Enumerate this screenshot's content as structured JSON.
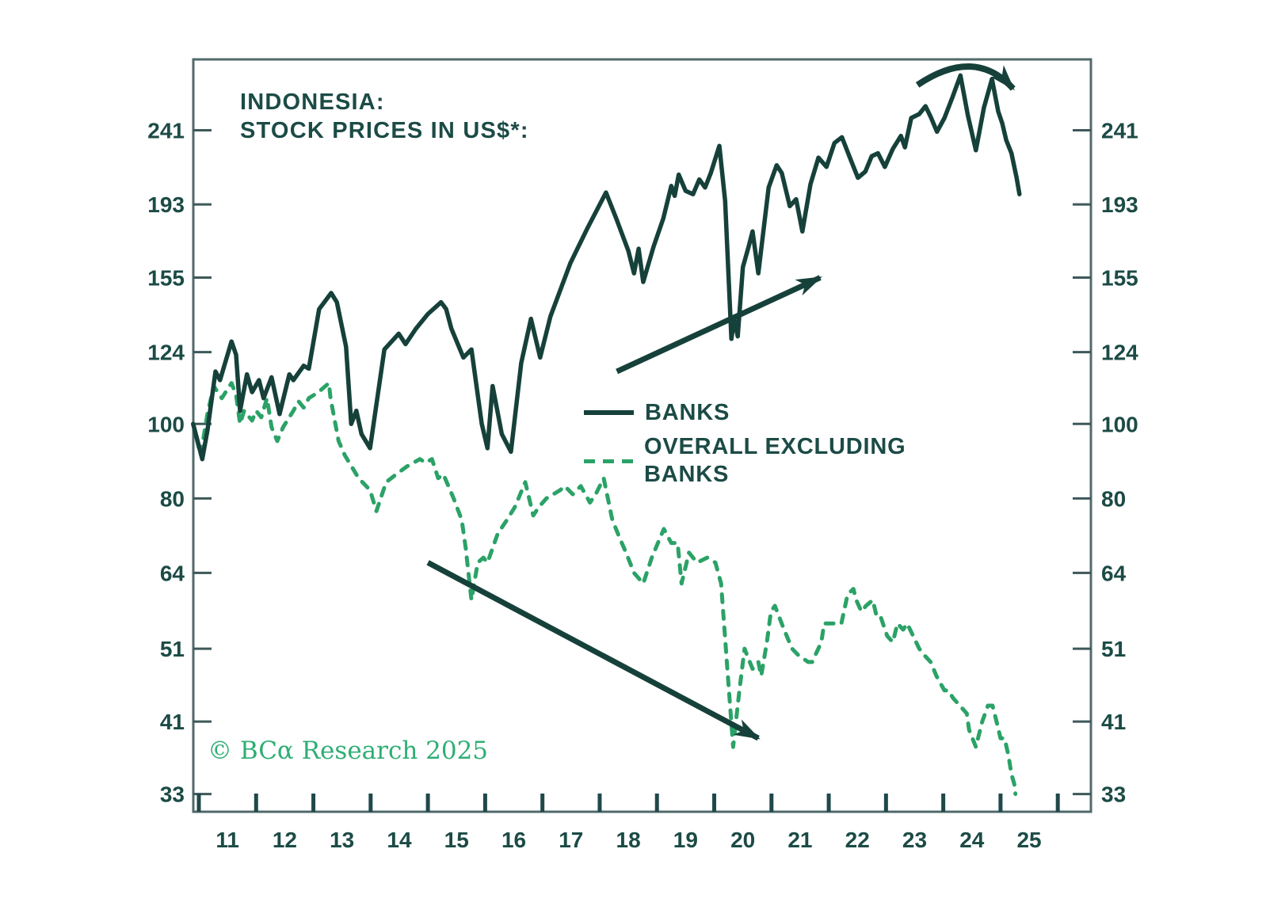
{
  "title": {
    "line1": "INDONESIA:",
    "line2": "STOCK PRICES IN US$*:"
  },
  "watermark": {
    "text": "© BCα Research 2025"
  },
  "legend": {
    "items": [
      {
        "label": "BANKS",
        "style": "solid"
      },
      {
        "label_line1": "OVERALL EXCLUDING",
        "label_line2": "BANKS",
        "style": "dashed"
      }
    ]
  },
  "colors": {
    "banks_line": "#16413a",
    "overall_line": "#2ba267",
    "text_dark": "#1c4b46",
    "frame": "#51696a",
    "y_tick": "#3d585a",
    "x_tick": "#20484a",
    "watermark_green": "#2fae74",
    "background": "#ffffff"
  },
  "chart_data": {
    "type": "line",
    "title": "INDONESIA: STOCK PRICES IN US$*:",
    "grid": false,
    "legend_position": "center-left-inside-plot",
    "y_axis": {
      "scale": "log",
      "ticks": [
        241,
        193,
        155,
        124,
        100,
        80,
        64,
        51,
        41,
        33
      ],
      "label_sides": "both",
      "range": [
        31,
        298
      ]
    },
    "x_axis": {
      "tick_years": [
        2011,
        2012,
        2013,
        2014,
        2015,
        2016,
        2017,
        2018,
        2019,
        2020,
        2021,
        2022,
        2023,
        2024,
        2025,
        2026
      ],
      "labels": [
        "11",
        "12",
        "13",
        "14",
        "15",
        "16",
        "17",
        "18",
        "19",
        "20",
        "21",
        "22",
        "23",
        "24",
        "25"
      ],
      "range": [
        2010.9,
        2026.6
      ]
    },
    "series": [
      {
        "name": "BANKS",
        "style": "solid",
        "points": [
          [
            2010.9,
            100
          ],
          [
            2011.06,
            90
          ],
          [
            2011.15,
            98
          ],
          [
            2011.29,
            117
          ],
          [
            2011.37,
            114
          ],
          [
            2011.57,
            128
          ],
          [
            2011.65,
            123
          ],
          [
            2011.72,
            104
          ],
          [
            2011.84,
            116
          ],
          [
            2011.93,
            110
          ],
          [
            2012.05,
            114
          ],
          [
            2012.13,
            108
          ],
          [
            2012.27,
            115
          ],
          [
            2012.41,
            103
          ],
          [
            2012.58,
            116
          ],
          [
            2012.65,
            114
          ],
          [
            2012.83,
            119
          ],
          [
            2012.92,
            118
          ],
          [
            2013.1,
            141
          ],
          [
            2013.31,
            148
          ],
          [
            2013.41,
            144
          ],
          [
            2013.57,
            126
          ],
          [
            2013.66,
            100
          ],
          [
            2013.75,
            104
          ],
          [
            2013.84,
            97
          ],
          [
            2013.99,
            93
          ],
          [
            2014.24,
            125
          ],
          [
            2014.49,
            131
          ],
          [
            2014.61,
            127
          ],
          [
            2014.79,
            133
          ],
          [
            2015.0,
            139
          ],
          [
            2015.23,
            144
          ],
          [
            2015.32,
            141
          ],
          [
            2015.41,
            133
          ],
          [
            2015.62,
            122
          ],
          [
            2015.76,
            125
          ],
          [
            2015.94,
            100
          ],
          [
            2016.04,
            93
          ],
          [
            2016.13,
            112
          ],
          [
            2016.29,
            97
          ],
          [
            2016.45,
            92
          ],
          [
            2016.63,
            120
          ],
          [
            2016.8,
            137
          ],
          [
            2016.96,
            122
          ],
          [
            2017.14,
            138
          ],
          [
            2017.49,
            162
          ],
          [
            2017.79,
            180
          ],
          [
            2018.11,
            200
          ],
          [
            2018.29,
            185
          ],
          [
            2018.5,
            168
          ],
          [
            2018.6,
            157
          ],
          [
            2018.68,
            169
          ],
          [
            2018.76,
            153
          ],
          [
            2018.94,
            170
          ],
          [
            2019.11,
            185
          ],
          [
            2019.25,
            204
          ],
          [
            2019.31,
            198
          ],
          [
            2019.38,
            211
          ],
          [
            2019.5,
            201
          ],
          [
            2019.63,
            199
          ],
          [
            2019.74,
            208
          ],
          [
            2019.84,
            203
          ],
          [
            2019.94,
            212
          ],
          [
            2020.09,
            230
          ],
          [
            2020.19,
            195
          ],
          [
            2020.3,
            129
          ],
          [
            2020.35,
            137
          ],
          [
            2020.41,
            130
          ],
          [
            2020.5,
            160
          ],
          [
            2020.6,
            170
          ],
          [
            2020.67,
            178
          ],
          [
            2020.77,
            157
          ],
          [
            2020.95,
            203
          ],
          [
            2021.09,
            217
          ],
          [
            2021.18,
            212
          ],
          [
            2021.32,
            192
          ],
          [
            2021.43,
            196
          ],
          [
            2021.54,
            178
          ],
          [
            2021.68,
            205
          ],
          [
            2021.82,
            222
          ],
          [
            2021.96,
            216
          ],
          [
            2022.1,
            232
          ],
          [
            2022.23,
            236
          ],
          [
            2022.37,
            222
          ],
          [
            2022.51,
            209
          ],
          [
            2022.64,
            213
          ],
          [
            2022.75,
            223
          ],
          [
            2022.86,
            225
          ],
          [
            2022.98,
            216
          ],
          [
            2023.12,
            228
          ],
          [
            2023.26,
            237
          ],
          [
            2023.33,
            229
          ],
          [
            2023.44,
            250
          ],
          [
            2023.58,
            253
          ],
          [
            2023.69,
            259
          ],
          [
            2023.78,
            251
          ],
          [
            2023.89,
            240
          ],
          [
            2024.02,
            250
          ],
          [
            2024.16,
            266
          ],
          [
            2024.3,
            284
          ],
          [
            2024.43,
            252
          ],
          [
            2024.57,
            227
          ],
          [
            2024.71,
            258
          ],
          [
            2024.85,
            281
          ],
          [
            2024.96,
            255
          ],
          [
            2025.03,
            246
          ],
          [
            2025.1,
            234
          ],
          [
            2025.19,
            225
          ],
          [
            2025.28,
            209
          ],
          [
            2025.33,
            199
          ]
        ]
      },
      {
        "name": "OVERALL EXCLUDING BANKS",
        "style": "dashed",
        "points": [
          [
            2010.9,
            100
          ],
          [
            2011.03,
            91
          ],
          [
            2011.15,
            103
          ],
          [
            2011.26,
            112
          ],
          [
            2011.4,
            108
          ],
          [
            2011.57,
            113
          ],
          [
            2011.65,
            109
          ],
          [
            2011.72,
            100
          ],
          [
            2011.79,
            104
          ],
          [
            2011.93,
            101
          ],
          [
            2012.0,
            104
          ],
          [
            2012.09,
            102
          ],
          [
            2012.19,
            108
          ],
          [
            2012.27,
            99
          ],
          [
            2012.37,
            95
          ],
          [
            2012.47,
            99
          ],
          [
            2012.65,
            104
          ],
          [
            2012.74,
            107
          ],
          [
            2012.83,
            105
          ],
          [
            2012.92,
            108
          ],
          [
            2013.09,
            110
          ],
          [
            2013.27,
            113
          ],
          [
            2013.3,
            108
          ],
          [
            2013.44,
            95
          ],
          [
            2013.55,
            91
          ],
          [
            2013.79,
            85
          ],
          [
            2013.99,
            82
          ],
          [
            2014.1,
            77
          ],
          [
            2014.27,
            84
          ],
          [
            2014.45,
            86
          ],
          [
            2014.63,
            88
          ],
          [
            2014.86,
            90
          ],
          [
            2014.96,
            89
          ],
          [
            2015.07,
            90
          ],
          [
            2015.18,
            85
          ],
          [
            2015.27,
            86
          ],
          [
            2015.45,
            80
          ],
          [
            2015.59,
            75
          ],
          [
            2015.66,
            69
          ],
          [
            2015.76,
            59
          ],
          [
            2015.87,
            66
          ],
          [
            2015.97,
            67
          ],
          [
            2016.04,
            66
          ],
          [
            2016.22,
            72
          ],
          [
            2016.38,
            75
          ],
          [
            2016.52,
            78
          ],
          [
            2016.7,
            84
          ],
          [
            2016.84,
            76
          ],
          [
            2016.94,
            78
          ],
          [
            2017.07,
            80
          ],
          [
            2017.31,
            82
          ],
          [
            2017.39,
            83
          ],
          [
            2017.53,
            81
          ],
          [
            2017.67,
            83
          ],
          [
            2017.83,
            79
          ],
          [
            2017.93,
            81
          ],
          [
            2018.07,
            85
          ],
          [
            2018.22,
            75
          ],
          [
            2018.35,
            71
          ],
          [
            2018.46,
            68
          ],
          [
            2018.6,
            64
          ],
          [
            2018.76,
            62
          ],
          [
            2018.91,
            67
          ],
          [
            2019.12,
            73
          ],
          [
            2019.25,
            70
          ],
          [
            2019.36,
            70
          ],
          [
            2019.43,
            62
          ],
          [
            2019.56,
            68
          ],
          [
            2019.7,
            66
          ],
          [
            2019.88,
            67
          ],
          [
            2020.02,
            66
          ],
          [
            2020.12,
            62
          ],
          [
            2020.23,
            48
          ],
          [
            2020.33,
            38
          ],
          [
            2020.44,
            45
          ],
          [
            2020.53,
            51
          ],
          [
            2020.67,
            48
          ],
          [
            2020.77,
            49
          ],
          [
            2020.82,
            47
          ],
          [
            2020.92,
            52
          ],
          [
            2020.99,
            57
          ],
          [
            2021.06,
            58
          ],
          [
            2021.22,
            54
          ],
          [
            2021.36,
            51
          ],
          [
            2021.47,
            50
          ],
          [
            2021.64,
            49
          ],
          [
            2021.71,
            49
          ],
          [
            2021.87,
            52
          ],
          [
            2021.92,
            55
          ],
          [
            2022.1,
            55
          ],
          [
            2022.22,
            55
          ],
          [
            2022.33,
            60
          ],
          [
            2022.43,
            61
          ],
          [
            2022.48,
            59
          ],
          [
            2022.57,
            57
          ],
          [
            2022.65,
            58
          ],
          [
            2022.77,
            59
          ],
          [
            2022.84,
            56
          ],
          [
            2022.91,
            56
          ],
          [
            2023.02,
            53
          ],
          [
            2023.12,
            52
          ],
          [
            2023.2,
            55
          ],
          [
            2023.3,
            54
          ],
          [
            2023.37,
            55
          ],
          [
            2023.58,
            51
          ],
          [
            2023.67,
            50
          ],
          [
            2023.78,
            49
          ],
          [
            2023.88,
            47
          ],
          [
            2024.02,
            45
          ],
          [
            2024.09,
            45
          ],
          [
            2024.17,
            44
          ],
          [
            2024.41,
            42
          ],
          [
            2024.45,
            40
          ],
          [
            2024.57,
            38
          ],
          [
            2024.68,
            41
          ],
          [
            2024.78,
            43
          ],
          [
            2024.86,
            43
          ],
          [
            2024.93,
            41
          ],
          [
            2025.0,
            39
          ],
          [
            2025.07,
            39
          ],
          [
            2025.14,
            37
          ],
          [
            2025.19,
            35
          ],
          [
            2025.24,
            34
          ],
          [
            2025.26,
            33
          ]
        ]
      }
    ],
    "annotations": [
      {
        "type": "straight-arrow",
        "name": "banks-uptrend-arrow",
        "from": [
          2018.3,
          117
        ],
        "to": [
          2021.85,
          155
        ]
      },
      {
        "type": "straight-arrow",
        "name": "overall-downtrend-arrow",
        "from": [
          2015.0,
          66
        ],
        "to": [
          2020.77,
          39
        ]
      },
      {
        "type": "curved-arrow",
        "name": "banks-rollover-arrow",
        "from": [
          2023.55,
          276
        ],
        "ctrl": [
          2024.55,
          310
        ],
        "to": [
          2025.22,
          273
        ]
      }
    ]
  }
}
